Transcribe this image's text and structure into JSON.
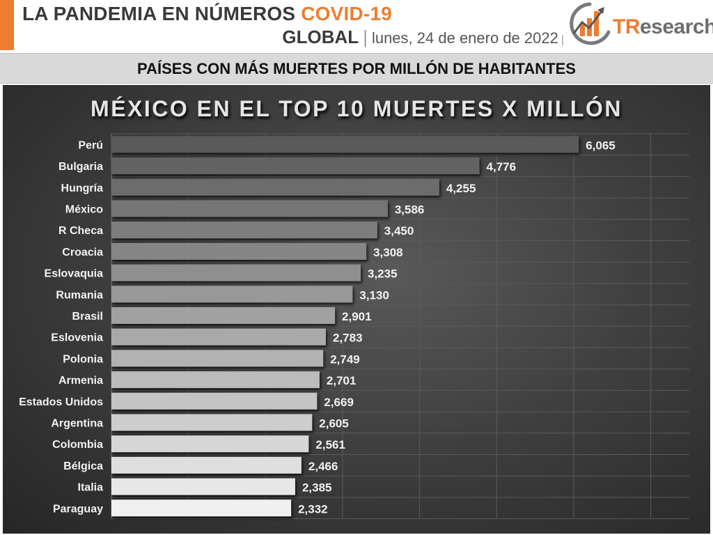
{
  "header": {
    "title_main": "LA PANDEMIA EN NÚMEROS",
    "title_accent": "COVID-19",
    "scope": "GLOBAL",
    "separator": "|",
    "date": "lunes, 24 de enero de 2022",
    "date_separator": "|",
    "logo_text_t": "TR",
    "logo_text_rest": "esearch",
    "logo_icon": "bar-chart-arrow-icon"
  },
  "banner": {
    "text": "PAÍSES CON MÁS MUERTES POR MILLÓN DE HABITANTES"
  },
  "colors": {
    "accent": "#ed7d31",
    "panel": "#404040",
    "bar_dark": "#5a5a5a",
    "bar_light": "#f2f2f2"
  },
  "chart_data": {
    "type": "bar",
    "orientation": "horizontal",
    "title": "MÉXICO EN EL TOP 10 MUERTES X MILLÓN",
    "categories": [
      "Perú",
      "Bulgaria",
      "Hungría",
      "México",
      "R Checa",
      "Croacia",
      "Eslovaquia",
      "Rumania",
      "Brasil",
      "Eslovenia",
      "Polonia",
      "Armenia",
      "Estados Unidos",
      "Argentina",
      "Colombia",
      "Bélgica",
      "Italia",
      "Paraguay"
    ],
    "values": [
      6065,
      4776,
      4255,
      3586,
      3450,
      3308,
      3235,
      3130,
      2901,
      2783,
      2749,
      2701,
      2669,
      2605,
      2561,
      2466,
      2385,
      2332
    ],
    "value_labels": [
      "6,065",
      "4,776",
      "4,255",
      "3,586",
      "3,450",
      "3,308",
      "3,235",
      "3,130",
      "2,901",
      "2,783",
      "2,749",
      "2,701",
      "2,669",
      "2,605",
      "2,561",
      "2,466",
      "2,385",
      "2,332"
    ],
    "xlim": [
      0,
      7500
    ],
    "gridlines": true,
    "x_tick_labels_shown": false
  }
}
